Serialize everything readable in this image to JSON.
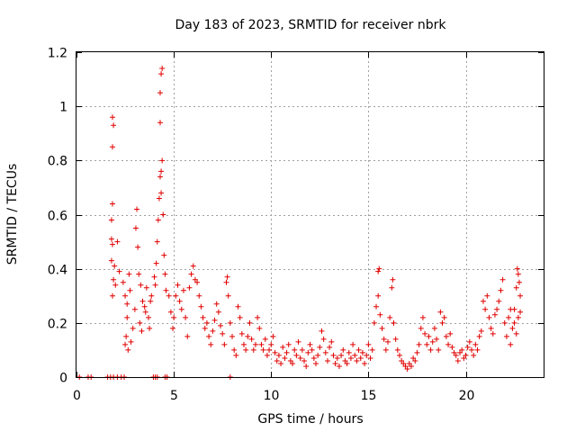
{
  "chart_data": {
    "type": "scatter",
    "title": "Day 183 of 2023, SRMTID for receiver nbrk",
    "xlabel": "GPS time / hours",
    "ylabel": "SRMTID / TECUs",
    "xlim": [
      0,
      24
    ],
    "ylim": [
      0,
      1.2
    ],
    "xticks": [
      0,
      5,
      10,
      15,
      20
    ],
    "yticks": [
      0,
      0.2,
      0.4,
      0.6,
      0.8,
      1,
      1.2
    ],
    "xtick_labels": [
      "0",
      "5",
      "10",
      "15",
      "20"
    ],
    "ytick_labels": [
      "0",
      "0.2",
      "0.4",
      "0.6",
      "0.8",
      "1",
      "1.2"
    ],
    "grid": true,
    "marker": "+",
    "color": "#e00000",
    "series": [
      {
        "name": "SRMTID",
        "points": [
          [
            0.15,
            0
          ],
          [
            0.6,
            0
          ],
          [
            0.75,
            0
          ],
          [
            1.6,
            0
          ],
          [
            1.75,
            0
          ],
          [
            1.9,
            0
          ],
          [
            2.1,
            0
          ],
          [
            2.3,
            0
          ],
          [
            2.45,
            0
          ],
          [
            3.95,
            0
          ],
          [
            4.05,
            0
          ],
          [
            4.15,
            0
          ],
          [
            4.55,
            0
          ],
          [
            4.65,
            0
          ],
          [
            7.9,
            0
          ],
          [
            1.85,
            0.96
          ],
          [
            1.9,
            0.93
          ],
          [
            1.85,
            0.85
          ],
          [
            1.85,
            0.64
          ],
          [
            1.8,
            0.58
          ],
          [
            1.8,
            0.51
          ],
          [
            1.85,
            0.49
          ],
          [
            2.1,
            0.5
          ],
          [
            1.8,
            0.43
          ],
          [
            1.95,
            0.41
          ],
          [
            1.9,
            0.36
          ],
          [
            2.0,
            0.34
          ],
          [
            1.85,
            0.3
          ],
          [
            2.2,
            0.39
          ],
          [
            2.4,
            0.35
          ],
          [
            2.5,
            0.3
          ],
          [
            2.6,
            0.27
          ],
          [
            2.7,
            0.38
          ],
          [
            2.75,
            0.32
          ],
          [
            2.6,
            0.22
          ],
          [
            2.55,
            0.15
          ],
          [
            2.5,
            0.12
          ],
          [
            2.65,
            0.1
          ],
          [
            2.8,
            0.13
          ],
          [
            2.9,
            0.18
          ],
          [
            3.0,
            0.25
          ],
          [
            3.05,
            0.55
          ],
          [
            3.1,
            0.62
          ],
          [
            3.15,
            0.48
          ],
          [
            3.2,
            0.38
          ],
          [
            3.3,
            0.34
          ],
          [
            3.25,
            0.2
          ],
          [
            3.35,
            0.17
          ],
          [
            3.4,
            0.28
          ],
          [
            3.5,
            0.26
          ],
          [
            3.55,
            0.24
          ],
          [
            3.6,
            0.33
          ],
          [
            3.7,
            0.22
          ],
          [
            3.75,
            0.18
          ],
          [
            3.8,
            0.28
          ],
          [
            3.85,
            0.3
          ],
          [
            4.0,
            0.37
          ],
          [
            4.05,
            0.34
          ],
          [
            4.1,
            0.42
          ],
          [
            4.15,
            0.5
          ],
          [
            4.2,
            0.58
          ],
          [
            4.25,
            0.66
          ],
          [
            4.3,
            0.74
          ],
          [
            4.35,
            0.76
          ],
          [
            4.4,
            0.8
          ],
          [
            4.35,
            0.68
          ],
          [
            4.3,
            0.94
          ],
          [
            4.3,
            1.05
          ],
          [
            4.35,
            1.12
          ],
          [
            4.4,
            1.14
          ],
          [
            4.45,
            0.6
          ],
          [
            4.5,
            0.45
          ],
          [
            4.55,
            0.38
          ],
          [
            4.6,
            0.32
          ],
          [
            4.75,
            0.3
          ],
          [
            4.85,
            0.24
          ],
          [
            4.95,
            0.18
          ],
          [
            5.0,
            0.22
          ],
          [
            5.1,
            0.3
          ],
          [
            5.2,
            0.34
          ],
          [
            5.3,
            0.28
          ],
          [
            5.4,
            0.25
          ],
          [
            5.5,
            0.32
          ],
          [
            5.6,
            0.22
          ],
          [
            5.7,
            0.15
          ],
          [
            5.8,
            0.33
          ],
          [
            5.9,
            0.38
          ],
          [
            6.0,
            0.41
          ],
          [
            6.1,
            0.36
          ],
          [
            6.2,
            0.35
          ],
          [
            6.3,
            0.3
          ],
          [
            6.4,
            0.26
          ],
          [
            6.5,
            0.22
          ],
          [
            6.6,
            0.18
          ],
          [
            6.7,
            0.2
          ],
          [
            6.8,
            0.15
          ],
          [
            6.9,
            0.12
          ],
          [
            7.0,
            0.17
          ],
          [
            7.1,
            0.21
          ],
          [
            7.2,
            0.27
          ],
          [
            7.3,
            0.24
          ],
          [
            7.4,
            0.19
          ],
          [
            7.5,
            0.16
          ],
          [
            7.6,
            0.12
          ],
          [
            7.7,
            0.35
          ],
          [
            7.75,
            0.37
          ],
          [
            7.8,
            0.3
          ],
          [
            7.9,
            0.2
          ],
          [
            8.0,
            0.15
          ],
          [
            8.1,
            0.1
          ],
          [
            8.2,
            0.08
          ],
          [
            8.3,
            0.26
          ],
          [
            8.4,
            0.22
          ],
          [
            8.5,
            0.16
          ],
          [
            8.6,
            0.12
          ],
          [
            8.7,
            0.1
          ],
          [
            8.8,
            0.15
          ],
          [
            8.9,
            0.2
          ],
          [
            9.0,
            0.14
          ],
          [
            9.1,
            0.1
          ],
          [
            9.2,
            0.12
          ],
          [
            9.3,
            0.22
          ],
          [
            9.4,
            0.18
          ],
          [
            9.5,
            0.12
          ],
          [
            9.6,
            0.1
          ],
          [
            9.7,
            0.14
          ],
          [
            9.8,
            0.08
          ],
          [
            9.9,
            0.1
          ],
          [
            10.0,
            0.12
          ],
          [
            10.1,
            0.15
          ],
          [
            10.2,
            0.09
          ],
          [
            10.3,
            0.06
          ],
          [
            10.4,
            0.08
          ],
          [
            10.5,
            0.05
          ],
          [
            10.6,
            0.11
          ],
          [
            10.7,
            0.07
          ],
          [
            10.8,
            0.09
          ],
          [
            10.9,
            0.12
          ],
          [
            11.0,
            0.06
          ],
          [
            11.1,
            0.05
          ],
          [
            11.2,
            0.1
          ],
          [
            11.3,
            0.08
          ],
          [
            11.4,
            0.13
          ],
          [
            11.5,
            0.07
          ],
          [
            11.6,
            0.1
          ],
          [
            11.7,
            0.06
          ],
          [
            11.8,
            0.04
          ],
          [
            11.9,
            0.09
          ],
          [
            12.0,
            0.12
          ],
          [
            12.1,
            0.1
          ],
          [
            12.2,
            0.07
          ],
          [
            12.3,
            0.05
          ],
          [
            12.4,
            0.08
          ],
          [
            12.5,
            0.11
          ],
          [
            12.6,
            0.17
          ],
          [
            12.7,
            0.14
          ],
          [
            12.8,
            0.09
          ],
          [
            12.9,
            0.06
          ],
          [
            13.0,
            0.11
          ],
          [
            13.1,
            0.13
          ],
          [
            13.2,
            0.08
          ],
          [
            13.3,
            0.05
          ],
          [
            13.4,
            0.07
          ],
          [
            13.5,
            0.04
          ],
          [
            13.6,
            0.08
          ],
          [
            13.7,
            0.1
          ],
          [
            13.8,
            0.06
          ],
          [
            13.9,
            0.05
          ],
          [
            14.0,
            0.09
          ],
          [
            14.1,
            0.07
          ],
          [
            14.2,
            0.12
          ],
          [
            14.3,
            0.08
          ],
          [
            14.4,
            0.06
          ],
          [
            14.5,
            0.1
          ],
          [
            14.6,
            0.07
          ],
          [
            14.7,
            0.09
          ],
          [
            14.8,
            0.05
          ],
          [
            14.9,
            0.08
          ],
          [
            15.0,
            0.12
          ],
          [
            15.1,
            0.07
          ],
          [
            15.2,
            0.1
          ],
          [
            15.3,
            0.2
          ],
          [
            15.4,
            0.26
          ],
          [
            15.5,
            0.39
          ],
          [
            15.55,
            0.4
          ],
          [
            15.5,
            0.3
          ],
          [
            15.6,
            0.23
          ],
          [
            15.7,
            0.18
          ],
          [
            15.8,
            0.14
          ],
          [
            15.9,
            0.1
          ],
          [
            16.0,
            0.13
          ],
          [
            16.1,
            0.22
          ],
          [
            16.2,
            0.33
          ],
          [
            16.25,
            0.36
          ],
          [
            16.3,
            0.2
          ],
          [
            16.4,
            0.14
          ],
          [
            16.5,
            0.1
          ],
          [
            16.6,
            0.08
          ],
          [
            16.7,
            0.06
          ],
          [
            16.8,
            0.05
          ],
          [
            16.9,
            0.04
          ],
          [
            17.0,
            0.03
          ],
          [
            17.1,
            0.05
          ],
          [
            17.2,
            0.04
          ],
          [
            17.3,
            0.07
          ],
          [
            17.4,
            0.06
          ],
          [
            17.5,
            0.09
          ],
          [
            17.6,
            0.12
          ],
          [
            17.7,
            0.18
          ],
          [
            17.8,
            0.22
          ],
          [
            17.9,
            0.16
          ],
          [
            18.0,
            0.12
          ],
          [
            18.1,
            0.15
          ],
          [
            18.2,
            0.1
          ],
          [
            18.3,
            0.13
          ],
          [
            18.4,
            0.18
          ],
          [
            18.5,
            0.14
          ],
          [
            18.6,
            0.1
          ],
          [
            18.7,
            0.24
          ],
          [
            18.8,
            0.2
          ],
          [
            18.9,
            0.22
          ],
          [
            19.0,
            0.15
          ],
          [
            19.1,
            0.12
          ],
          [
            19.2,
            0.16
          ],
          [
            19.3,
            0.11
          ],
          [
            19.4,
            0.09
          ],
          [
            19.5,
            0.08
          ],
          [
            19.6,
            0.06
          ],
          [
            19.7,
            0.09
          ],
          [
            19.8,
            0.1
          ],
          [
            19.9,
            0.07
          ],
          [
            20.0,
            0.08
          ],
          [
            20.1,
            0.11
          ],
          [
            20.2,
            0.13
          ],
          [
            20.3,
            0.1
          ],
          [
            20.4,
            0.08
          ],
          [
            20.5,
            0.12
          ],
          [
            20.6,
            0.1
          ],
          [
            20.7,
            0.15
          ],
          [
            20.8,
            0.17
          ],
          [
            20.9,
            0.28
          ],
          [
            21.0,
            0.25
          ],
          [
            21.1,
            0.3
          ],
          [
            21.2,
            0.22
          ],
          [
            21.3,
            0.18
          ],
          [
            21.4,
            0.16
          ],
          [
            21.5,
            0.23
          ],
          [
            21.6,
            0.25
          ],
          [
            21.7,
            0.28
          ],
          [
            21.8,
            0.32
          ],
          [
            21.9,
            0.36
          ],
          [
            22.0,
            0.2
          ],
          [
            22.1,
            0.15
          ],
          [
            22.2,
            0.22
          ],
          [
            22.3,
            0.12
          ],
          [
            22.4,
            0.18
          ],
          [
            22.5,
            0.25
          ],
          [
            22.6,
            0.33
          ],
          [
            22.65,
            0.4
          ],
          [
            22.7,
            0.38
          ],
          [
            22.75,
            0.35
          ],
          [
            22.8,
            0.3
          ],
          [
            22.5,
            0.2
          ],
          [
            22.3,
            0.25
          ],
          [
            22.6,
            0.16
          ],
          [
            22.7,
            0.22
          ],
          [
            22.8,
            0.24
          ]
        ]
      }
    ]
  }
}
